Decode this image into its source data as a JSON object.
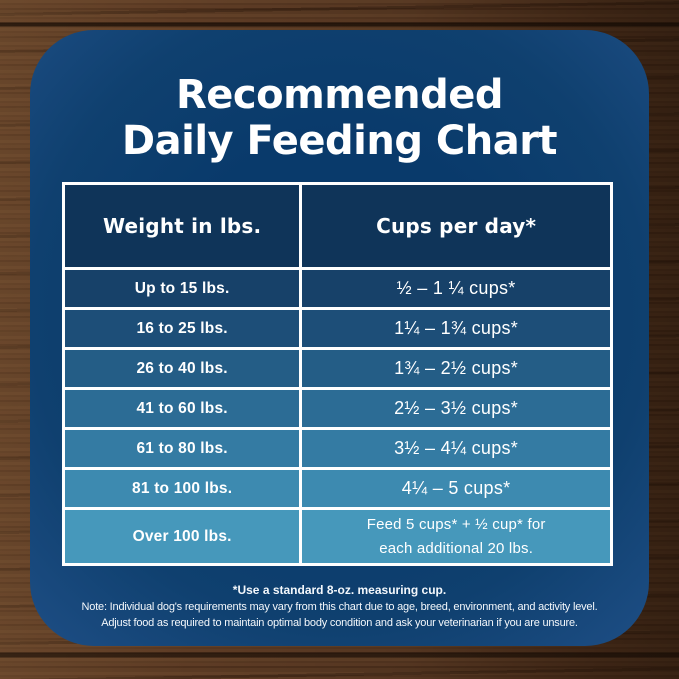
{
  "title": {
    "line1": "Recommended",
    "line2": "Daily Feeding Chart"
  },
  "table": {
    "headers": {
      "weight": "Weight in lbs.",
      "cups": "Cups per day*"
    },
    "rows": [
      {
        "weight": "Up to 15 lbs.",
        "cups": "½ – 1 ¼ cups*"
      },
      {
        "weight": "16 to 25 lbs.",
        "cups": "1¼ – 1¾  cups*"
      },
      {
        "weight": "26 to 40 lbs.",
        "cups": "1¾ – 2½ cups*"
      },
      {
        "weight": "41 to 60 lbs.",
        "cups": "2½ – 3½ cups*"
      },
      {
        "weight": "61 to 80 lbs.",
        "cups": "3½ – 4¼ cups*"
      },
      {
        "weight": "81 to 100 lbs.",
        "cups": "4¼ – 5 cups*"
      },
      {
        "weight": "Over 100 lbs.",
        "cups_line1": "Feed 5 cups* + ½ cup* for",
        "cups_line2": "each additional 20 lbs."
      }
    ],
    "row_colors": [
      "#174169",
      "#1d4e78",
      "#245d86",
      "#2c6c95",
      "#347ba3",
      "#3d8ab0",
      "#4698bb"
    ]
  },
  "footnotes": {
    "measuring_cup": "*Use a standard 8-oz. measuring cup.",
    "note_line1": "Note: Individual dog's requirements may vary from this chart due to age, breed, environment, and activity level.",
    "note_line2": "Adjust food as required to maintain optimal body condition and ask your veterinarian if you are unsure."
  },
  "colors": {
    "card_navy": "#0f406f",
    "header_bg": "#0f3459",
    "border_white": "#ffffff",
    "text_white": "#ffffff",
    "wood_brown": "#5a3a23"
  },
  "chart_data": {
    "type": "table",
    "title": "Recommended Daily Feeding Chart",
    "columns": [
      "Weight in lbs.",
      "Cups per day*"
    ],
    "rows": [
      [
        "Up to 15 lbs.",
        "½ – 1 ¼ cups*"
      ],
      [
        "16 to 25 lbs.",
        "1¼ – 1¾ cups*"
      ],
      [
        "26 to 40 lbs.",
        "1¾ – 2½ cups*"
      ],
      [
        "41 to 60 lbs.",
        "2½ – 3½ cups*"
      ],
      [
        "61 to 80 lbs.",
        "3½ – 4¼ cups*"
      ],
      [
        "81 to 100 lbs.",
        "4¼ – 5 cups*"
      ],
      [
        "Over 100 lbs.",
        "Feed 5 cups* + ½ cup* for each additional 20 lbs."
      ]
    ],
    "footnotes": [
      "*Use a standard 8-oz. measuring cup.",
      "Note: Individual dog's requirements may vary from this chart due to age, breed, environment, and activity level.",
      "Adjust food as required to maintain optimal body condition and ask your veterinarian if you are unsure."
    ]
  }
}
